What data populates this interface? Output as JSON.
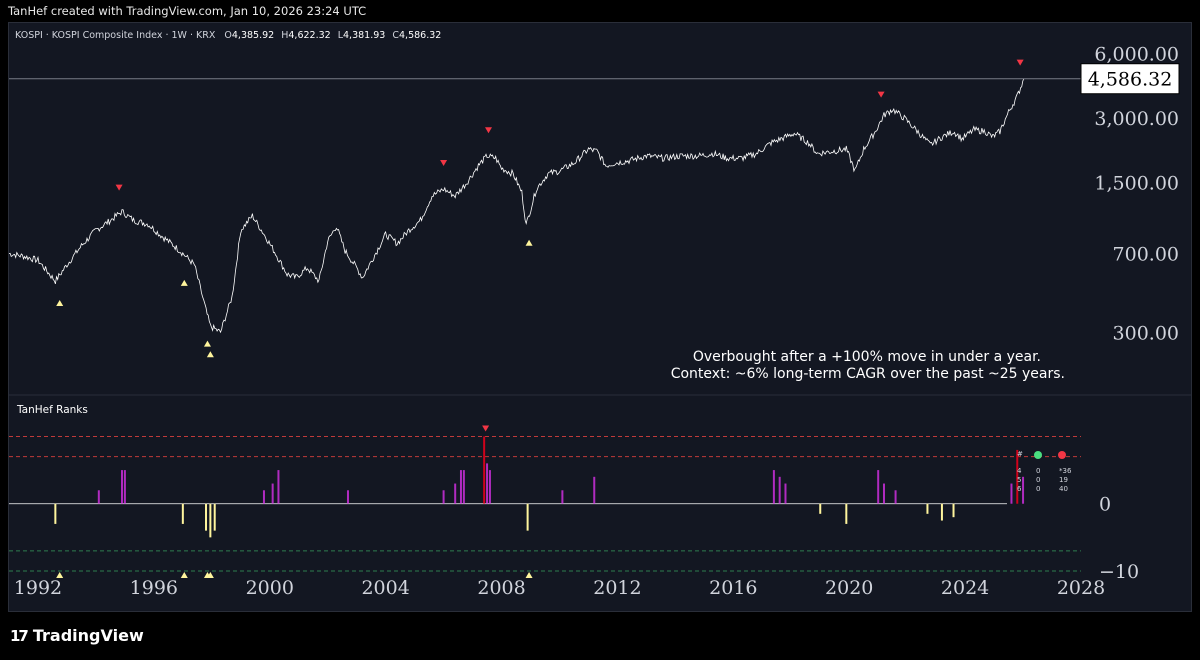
{
  "header": {
    "attribution": "TanHef created with TradingView.com, Jan 10, 2026 23:24 UTC"
  },
  "legend": {
    "symbol_text": "KOSPI · KOSPI Composite Index · 1W · KRX",
    "o_label": "O",
    "o_value": "4,385.92",
    "h_label": "H",
    "h_value": "4,622.32",
    "l_label": "L",
    "l_value": "4,381.93",
    "c_label": "C",
    "c_value": "4,586.32"
  },
  "last_price_label": "4,586.32",
  "annotation": {
    "line1": "Overbought after a +100% move in under a year.",
    "line2": "Context: ~6% long-term CAGR over the past ~25 years."
  },
  "indicator": {
    "title": "TanHef Ranks",
    "table": {
      "header": [
        "#",
        "",
        "*36"
      ],
      "rows": [
        [
          "4",
          "0",
          "*36"
        ],
        [
          "5",
          "0",
          "19"
        ],
        [
          "6",
          "0",
          "40"
        ]
      ],
      "dot_colors": [
        "#4ade80",
        "#f23645"
      ]
    }
  },
  "footer": {
    "logo_mark": "17",
    "logo_text": "TradingView"
  },
  "colors": {
    "background": "#131722",
    "price_line": "#ffffff",
    "buy_marker": "#fff59d",
    "sell_marker": "#f23645",
    "bar_magenta": "#b02bc0",
    "bar_red": "#d0021b",
    "bar_yellow": "#fff59d",
    "dashed_red": "#c03a3a",
    "dashed_green": "#2e7d4f"
  },
  "chart_data": [
    {
      "type": "line",
      "title": "",
      "yscale": "log",
      "ylim": [
        240,
        7500
      ],
      "y_ticks": [
        {
          "value": 300,
          "label": "300.00"
        },
        {
          "value": 700,
          "label": "700.00"
        },
        {
          "value": 1500,
          "label": "1,500.00"
        },
        {
          "value": 3000,
          "label": "3,000.00"
        },
        {
          "value": 6000,
          "label": "6,000.00"
        }
      ],
      "x_ticks": [
        "1992",
        "1996",
        "2000",
        "2004",
        "2008",
        "2012",
        "2016",
        "2020",
        "2024",
        "2028"
      ],
      "xlim": [
        1991.0,
        2028.0
      ],
      "series": [
        {
          "x": [
            1991.0,
            1991.5,
            1992.0,
            1992.6,
            1993.0,
            1993.5,
            1994.0,
            1994.5,
            1994.9,
            1995.3,
            1995.8,
            1996.2,
            1996.7,
            1997.0,
            1997.4,
            1997.8,
            1997.95,
            1998.3,
            1998.7,
            1999.0,
            1999.4,
            1999.9,
            2000.2,
            2000.6,
            2000.9,
            2001.3,
            2001.7,
            2002.0,
            2002.3,
            2002.6,
            2003.0,
            2003.2,
            2003.7,
            2004.0,
            2004.4,
            2004.8,
            2005.2,
            2005.6,
            2006.0,
            2006.4,
            2006.8,
            2007.2,
            2007.5,
            2007.8,
            2008.0,
            2008.4,
            2008.7,
            2008.85,
            2009.2,
            2009.6,
            2010.0,
            2010.5,
            2011.0,
            2011.3,
            2011.6,
            2011.9,
            2012.4,
            2013.0,
            2013.6,
            2014.2,
            2014.8,
            2015.3,
            2015.8,
            2016.3,
            2016.8,
            2017.3,
            2017.8,
            2018.1,
            2018.6,
            2018.9,
            2019.4,
            2019.9,
            2020.2,
            2020.5,
            2020.9,
            2021.2,
            2021.5,
            2021.9,
            2022.3,
            2022.8,
            2023.2,
            2023.6,
            2023.9,
            2024.3,
            2024.7,
            2024.95,
            2025.2,
            2025.5,
            2025.8,
            2026.03
          ],
          "y": [
            700,
            680,
            650,
            520,
            620,
            760,
            900,
            1000,
            1100,
            1000,
            960,
            860,
            760,
            700,
            620,
            380,
            320,
            300,
            440,
            900,
            1050,
            820,
            700,
            560,
            540,
            600,
            520,
            800,
            940,
            720,
            600,
            540,
            720,
            860,
            780,
            900,
            1000,
            1300,
            1400,
            1300,
            1500,
            1800,
            2000,
            1950,
            1750,
            1650,
            1350,
            950,
            1400,
            1650,
            1700,
            1850,
            2150,
            2100,
            1800,
            1850,
            1900,
            2000,
            1950,
            2000,
            2000,
            2050,
            1950,
            1950,
            2050,
            2300,
            2450,
            2550,
            2300,
            2050,
            2100,
            2150,
            1700,
            2150,
            2600,
            3100,
            3300,
            3000,
            2650,
            2250,
            2450,
            2600,
            2400,
            2650,
            2600,
            2450,
            2600,
            3200,
            3800,
            4586
          ]
        }
      ],
      "markers_buy": [
        1992.75,
        1997.05,
        1997.85,
        1997.95,
        2008.95
      ],
      "markers_sell": [
        1994.8,
        2006.0,
        2007.55,
        2021.1,
        2025.9
      ]
    },
    {
      "type": "bar",
      "title": "TanHef Ranks",
      "ylim": [
        -10,
        12
      ],
      "y_ticks": [
        {
          "value": 0,
          "label": "0"
        },
        {
          "value": -10,
          "label": "−10"
        }
      ],
      "reference_lines": [
        10,
        7,
        -7,
        -10
      ],
      "bars": [
        {
          "x": 1994.1,
          "v": 2
        },
        {
          "x": 1994.9,
          "v": 5
        },
        {
          "x": 1995.0,
          "v": 5
        },
        {
          "x": 1999.8,
          "v": 2
        },
        {
          "x": 2000.1,
          "v": 3
        },
        {
          "x": 2000.3,
          "v": 5
        },
        {
          "x": 2002.7,
          "v": 2
        },
        {
          "x": 2006.0,
          "v": 2
        },
        {
          "x": 2006.4,
          "v": 3
        },
        {
          "x": 2006.6,
          "v": 5
        },
        {
          "x": 2006.7,
          "v": 5
        },
        {
          "x": 2007.4,
          "v": 10
        },
        {
          "x": 2007.5,
          "v": 6
        },
        {
          "x": 2007.6,
          "v": 5
        },
        {
          "x": 2010.1,
          "v": 2
        },
        {
          "x": 2011.2,
          "v": 4
        },
        {
          "x": 2017.4,
          "v": 5
        },
        {
          "x": 2017.6,
          "v": 4
        },
        {
          "x": 2017.8,
          "v": 3
        },
        {
          "x": 2021.0,
          "v": 5
        },
        {
          "x": 2021.2,
          "v": 3
        },
        {
          "x": 2021.6,
          "v": 2
        },
        {
          "x": 2025.6,
          "v": 3
        },
        {
          "x": 2025.8,
          "v": 8
        },
        {
          "x": 2026.0,
          "v": 4
        },
        {
          "x": 1992.6,
          "v": -3
        },
        {
          "x": 1997.0,
          "v": -3
        },
        {
          "x": 1997.8,
          "v": -4
        },
        {
          "x": 1997.95,
          "v": -5
        },
        {
          "x": 1998.1,
          "v": -4
        },
        {
          "x": 2008.9,
          "v": -4
        },
        {
          "x": 2019.0,
          "v": -1.5
        },
        {
          "x": 2019.9,
          "v": -3
        },
        {
          "x": 2022.7,
          "v": -1.5
        },
        {
          "x": 2023.2,
          "v": -2.5
        },
        {
          "x": 2023.6,
          "v": -2
        }
      ]
    }
  ]
}
